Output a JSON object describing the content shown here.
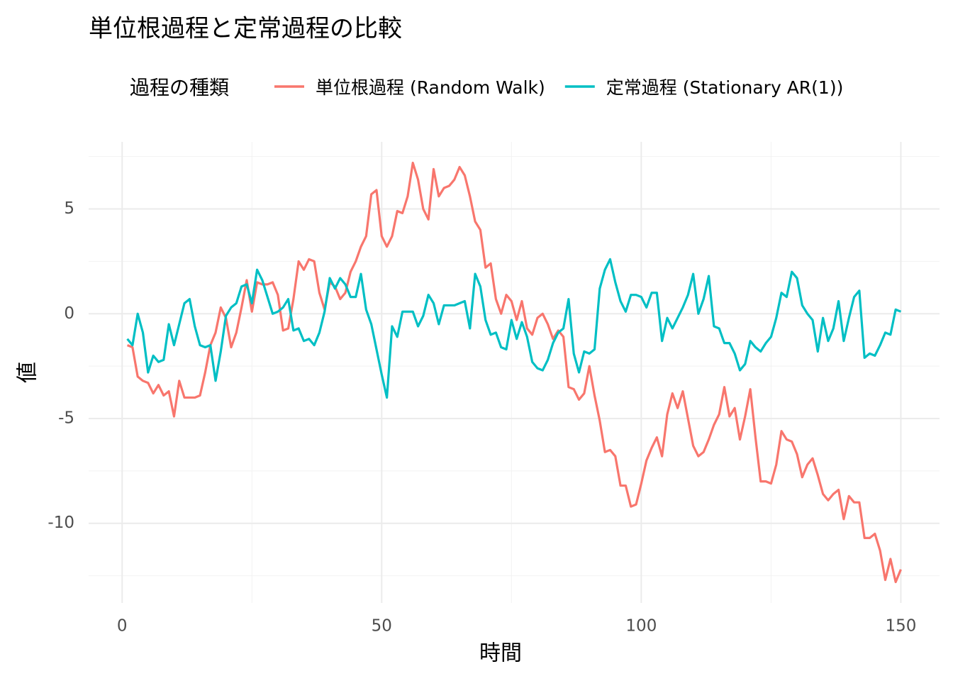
{
  "chart_data": {
    "type": "line",
    "title": "単位根過程と定常過程の比較",
    "xlabel": "時間",
    "ylabel": "値",
    "legend_title": "過程の種類",
    "legend_position": "top",
    "x": [
      1,
      2,
      3,
      4,
      5,
      6,
      7,
      8,
      9,
      10,
      11,
      12,
      13,
      14,
      15,
      16,
      17,
      18,
      19,
      20,
      21,
      22,
      23,
      24,
      25,
      26,
      27,
      28,
      29,
      30,
      31,
      32,
      33,
      34,
      35,
      36,
      37,
      38,
      39,
      40,
      41,
      42,
      43,
      44,
      45,
      46,
      47,
      48,
      49,
      50,
      51,
      52,
      53,
      54,
      55,
      56,
      57,
      58,
      59,
      60,
      61,
      62,
      63,
      64,
      65,
      66,
      67,
      68,
      69,
      70,
      71,
      72,
      73,
      74,
      75,
      76,
      77,
      78,
      79,
      80,
      81,
      82,
      83,
      84,
      85,
      86,
      87,
      88,
      89,
      90,
      91,
      92,
      93,
      94,
      95,
      96,
      97,
      98,
      99,
      100,
      101,
      102,
      103,
      104,
      105,
      106,
      107,
      108,
      109,
      110,
      111,
      112,
      113,
      114,
      115,
      116,
      117,
      118,
      119,
      120,
      121,
      122,
      123,
      124,
      125,
      126,
      127,
      128,
      129,
      130,
      131,
      132,
      133,
      134,
      135,
      136,
      137,
      138,
      139,
      140,
      141,
      142,
      143,
      144,
      145,
      146,
      147,
      148,
      149,
      150
    ],
    "series": [
      {
        "name": "単位根過程 (Random Walk)",
        "color": "#F8766D",
        "values": [
          -1.5,
          -1.6,
          -3.0,
          -3.2,
          -3.3,
          -3.8,
          -3.4,
          -3.9,
          -3.7,
          -4.9,
          -3.2,
          -4.0,
          -4.0,
          -4.0,
          -3.9,
          -2.8,
          -1.5,
          -0.9,
          0.3,
          -0.2,
          -1.6,
          -0.9,
          0.3,
          1.6,
          0.1,
          1.5,
          1.4,
          1.4,
          1.5,
          0.9,
          -0.8,
          -0.7,
          0.7,
          2.5,
          2.1,
          2.6,
          2.5,
          1.0,
          0.2,
          1.5,
          1.3,
          0.7,
          1.0,
          2.0,
          2.5,
          3.2,
          3.7,
          5.7,
          5.9,
          3.7,
          3.2,
          3.7,
          4.9,
          4.8,
          5.6,
          7.2,
          6.4,
          5.0,
          4.5,
          6.9,
          5.6,
          6.0,
          6.1,
          6.4,
          7.0,
          6.6,
          5.6,
          4.4,
          4.0,
          2.2,
          2.4,
          0.7,
          0.0,
          0.9,
          0.6,
          -0.3,
          0.6,
          -0.7,
          -1.0,
          -0.2,
          0.0,
          -0.5,
          -1.2,
          -0.8,
          -1.1,
          -3.5,
          -3.6,
          -4.1,
          -3.8,
          -2.5,
          -3.9,
          -5.1,
          -6.6,
          -6.5,
          -6.8,
          -8.2,
          -8.2,
          -9.2,
          -9.1,
          -8.1,
          -7.0,
          -6.4,
          -5.9,
          -6.8,
          -4.8,
          -3.8,
          -4.5,
          -3.7,
          -5.0,
          -6.3,
          -6.8,
          -6.6,
          -6.0,
          -5.3,
          -4.8,
          -3.5,
          -4.9,
          -4.5,
          -6.0,
          -4.9,
          -3.6,
          -5.9,
          -8.0,
          -8.0,
          -8.1,
          -7.2,
          -5.6,
          -6.0,
          -6.1,
          -6.7,
          -7.8,
          -7.2,
          -6.9,
          -7.7,
          -8.6,
          -8.9,
          -8.6,
          -8.4,
          -9.8,
          -8.7,
          -9.0,
          -9.0,
          -10.7,
          -10.7,
          -10.5,
          -11.3,
          -12.7,
          -11.7,
          -12.8,
          -12.2
        ]
      },
      {
        "name": "定常過程 (Stationary AR(1))",
        "color": "#00BFC4",
        "values": [
          -1.2,
          -1.5,
          0.0,
          -0.9,
          -2.8,
          -2.0,
          -2.3,
          -2.2,
          -0.5,
          -1.5,
          -0.5,
          0.5,
          0.7,
          -0.6,
          -1.5,
          -1.6,
          -1.5,
          -3.2,
          -1.8,
          -0.1,
          0.3,
          0.5,
          1.3,
          1.4,
          0.5,
          2.1,
          1.6,
          0.8,
          0.0,
          0.1,
          0.3,
          0.7,
          -0.8,
          -0.7,
          -1.3,
          -1.2,
          -1.5,
          -0.9,
          0.1,
          1.7,
          1.2,
          1.7,
          1.4,
          0.8,
          0.8,
          1.9,
          0.2,
          -0.5,
          -1.7,
          -2.9,
          -4.0,
          -0.6,
          -1.1,
          0.1,
          0.1,
          0.1,
          -0.6,
          -0.1,
          0.9,
          0.5,
          -0.5,
          0.4,
          0.4,
          0.4,
          0.5,
          0.6,
          -0.7,
          1.9,
          1.3,
          -0.3,
          -1.0,
          -0.9,
          -1.6,
          -1.7,
          -0.3,
          -1.2,
          -0.4,
          -1.1,
          -2.3,
          -2.6,
          -2.7,
          -2.2,
          -1.4,
          -0.9,
          -0.7,
          0.7,
          -1.9,
          -2.8,
          -1.8,
          -1.9,
          -1.7,
          1.2,
          2.1,
          2.6,
          1.5,
          0.6,
          0.1,
          0.9,
          0.9,
          0.8,
          0.3,
          1.0,
          1.0,
          -1.3,
          -0.2,
          -0.7,
          -0.2,
          0.3,
          0.9,
          1.9,
          0.0,
          0.7,
          1.8,
          -0.6,
          -0.7,
          -1.4,
          -1.4,
          -1.9,
          -2.7,
          -2.4,
          -1.3,
          -1.6,
          -1.8,
          -1.4,
          -1.1,
          -0.2,
          1.0,
          0.8,
          2.0,
          1.7,
          0.4,
          0.0,
          -0.3,
          -1.8,
          -0.2,
          -1.3,
          -0.7,
          0.6,
          -1.3,
          -0.2,
          0.8,
          1.1,
          -2.1,
          -1.9,
          -2.0,
          -1.5,
          -0.9,
          -1.0,
          0.2,
          0.1
        ]
      }
    ],
    "xlim": [
      -6.45,
      157.45
    ],
    "xticks": [
      0,
      50,
      100,
      150
    ],
    "xminor": [
      25,
      75,
      125
    ],
    "ylim": [
      -13.8,
      8.2
    ],
    "yticks": [
      -10,
      -5,
      0,
      5
    ],
    "yminor": [
      -12.5,
      -7.5,
      -2.5,
      2.5,
      7.5
    ],
    "grid": true
  }
}
